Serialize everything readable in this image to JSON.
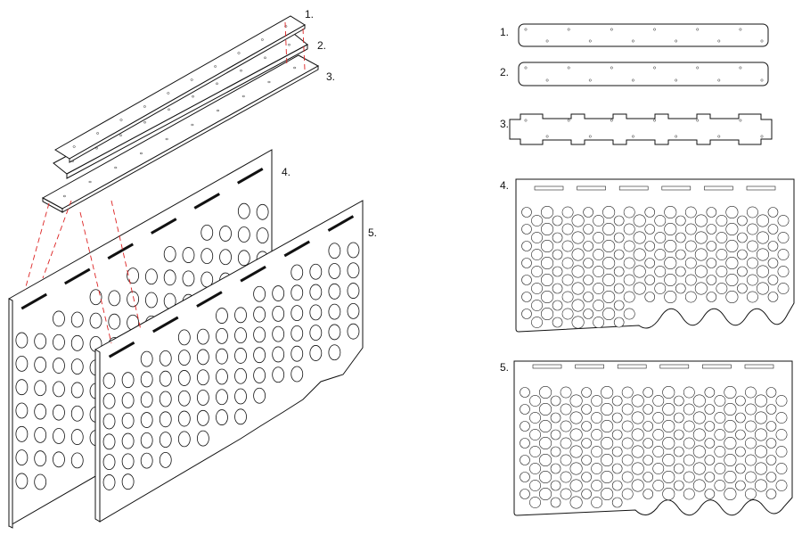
{
  "figure": {
    "part_labels": [
      "1.",
      "2.",
      "3.",
      "4.",
      "5."
    ],
    "colors": {
      "line": "#111111",
      "background": "#ffffff",
      "guide": "#dd2222"
    }
  }
}
